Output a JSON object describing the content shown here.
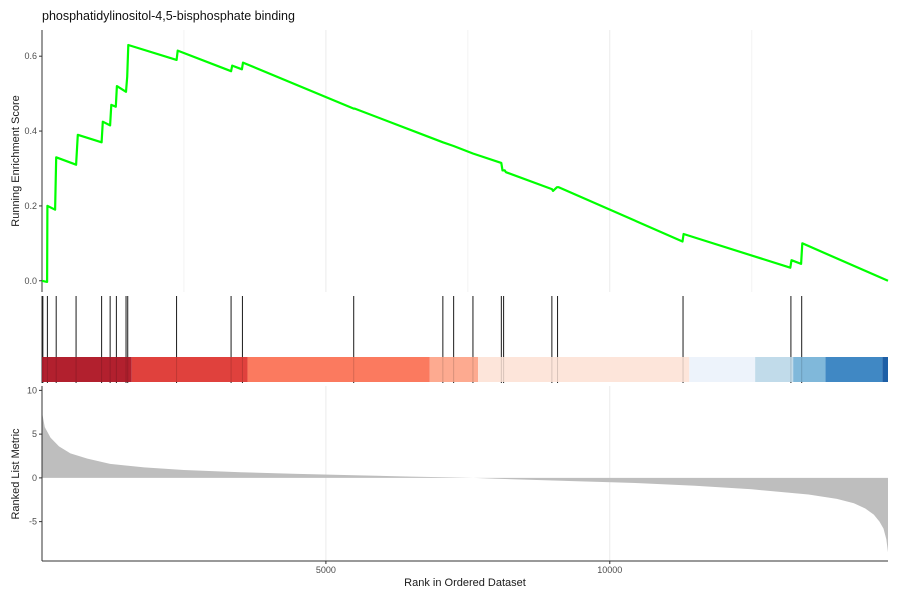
{
  "chart_data": {
    "type": "line",
    "title": "phosphatidylinositol-4,5-bisphosphate binding",
    "xlabel": "Rank in Ordered Dataset",
    "x_range": [
      0,
      14900
    ],
    "x_ticks": [
      {
        "value": 5000,
        "label": "5000"
      },
      {
        "value": 10000,
        "label": "10000"
      }
    ],
    "panels": {
      "running_score": {
        "ylabel": "Running Enrichment Score",
        "ylim": [
          -0.03,
          0.67
        ],
        "y_ticks": [
          {
            "value": 0.0,
            "label": "0.0"
          },
          {
            "value": 0.2,
            "label": "0.2"
          },
          {
            "value": 0.4,
            "label": "0.4"
          },
          {
            "value": 0.6,
            "label": "0.6"
          }
        ],
        "line_color": "#00ff00",
        "series": [
          {
            "x": [
              0,
              90,
              95,
              230,
              250,
              600,
              630,
              1050,
              1070,
              1200,
              1220,
              1300,
              1320,
              1480,
              1500,
              1520,
              2370,
              2390,
              3330,
              3350,
              3520,
              3540,
              5490,
              5510,
              7060,
              7250,
              7590,
              8090,
              8110,
              8150,
              8170,
              8980,
              9000,
              9070,
              9100,
              11280,
              11300,
              13180,
              13200,
              13370,
              13390,
              14900
            ],
            "y": [
              0.0,
              -0.003,
              0.2,
              0.19,
              0.33,
              0.31,
              0.39,
              0.37,
              0.425,
              0.415,
              0.47,
              0.465,
              0.52,
              0.505,
              0.545,
              0.63,
              0.59,
              0.615,
              0.56,
              0.575,
              0.565,
              0.583,
              0.46,
              0.46,
              0.37,
              0.36,
              0.34,
              0.315,
              0.295,
              0.295,
              0.29,
              0.245,
              0.24,
              0.25,
              0.25,
              0.105,
              0.125,
              0.035,
              0.055,
              0.045,
              0.1,
              0.0
            ]
          }
        ]
      },
      "gene_hits": {
        "x": [
          15,
          95,
          250,
          600,
          1050,
          1200,
          1310,
          1480,
          1510,
          2370,
          3330,
          3530,
          5490,
          7060,
          7250,
          7590,
          8090,
          8130,
          8980,
          9080,
          11290,
          13190,
          13380
        ]
      },
      "color_bar": {
        "segments": [
          {
            "x0": 0,
            "x1": 1580,
            "color": "#b2202e"
          },
          {
            "x0": 1580,
            "x1": 3620,
            "color": "#e0413d"
          },
          {
            "x0": 3620,
            "x1": 6830,
            "color": "#fb7a5f"
          },
          {
            "x0": 6830,
            "x1": 7680,
            "color": "#fdaa90"
          },
          {
            "x0": 7680,
            "x1": 11400,
            "color": "#fde5da"
          },
          {
            "x0": 11400,
            "x1": 12560,
            "color": "#edf3fb"
          },
          {
            "x0": 12560,
            "x1": 13230,
            "color": "#c1dbea"
          },
          {
            "x0": 13230,
            "x1": 13800,
            "color": "#80b8da"
          },
          {
            "x0": 13800,
            "x1": 14800,
            "color": "#4088c4"
          },
          {
            "x0": 14800,
            "x1": 14900,
            "color": "#1d5fa6"
          }
        ]
      },
      "ranked_metric": {
        "ylabel": "Ranked List Metric",
        "ylim": [
          -9.5,
          10.5
        ],
        "y_ticks": [
          {
            "value": -5,
            "label": "-5"
          },
          {
            "value": 0,
            "label": "0"
          },
          {
            "value": 5,
            "label": "5"
          },
          {
            "value": 10,
            "label": "10"
          }
        ],
        "fill_color": "#bebebe",
        "series": [
          {
            "x": [
              0,
              50,
              150,
              300,
              500,
              800,
              1200,
              1800,
              2500,
              3500,
              4500,
              5500,
              6500,
              7200,
              7600,
              8000,
              8500,
              9500,
              10500,
              11500,
              12500,
              13500,
              14000,
              14300,
              14500,
              14650,
              14750,
              14820,
              14870,
              14900
            ],
            "y": [
              7.5,
              5.8,
              4.6,
              3.6,
              2.8,
              2.2,
              1.6,
              1.2,
              0.9,
              0.65,
              0.45,
              0.3,
              0.15,
              0.05,
              0.0,
              -0.1,
              -0.2,
              -0.4,
              -0.6,
              -0.9,
              -1.3,
              -1.9,
              -2.4,
              -2.9,
              -3.5,
              -4.2,
              -5.0,
              -5.8,
              -7.0,
              -8.5
            ]
          }
        ]
      }
    }
  }
}
